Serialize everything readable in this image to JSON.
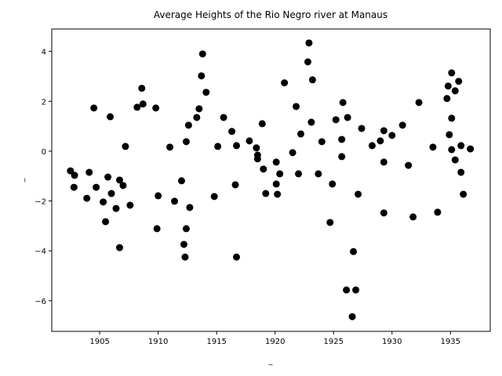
{
  "chart_data": {
    "type": "scatter",
    "title": "Average Heights of the Rio Negro river at Manaus",
    "x_label": "_",
    "y_label": "_",
    "color": "#000000",
    "x": [
      1902.5,
      1902.85,
      1902.8,
      1904.1,
      1903.9,
      1904.5,
      1904.7,
      1905.3,
      1905.5,
      1905.7,
      1905.9,
      1906.0,
      1906.4,
      1906.7,
      1906.7,
      1907.0,
      1907.2,
      1907.6,
      1908.2,
      1908.6,
      1908.7,
      1909.8,
      1909.9,
      1910.0,
      1911.0,
      1911.4,
      1912.0,
      1912.2,
      1912.3,
      1912.4,
      1912.4,
      1912.6,
      1912.7,
      1913.3,
      1913.5,
      1913.7,
      1913.8,
      1914.1,
      1914.8,
      1915.1,
      1915.6,
      1916.3,
      1916.6,
      1916.7,
      1916.7,
      1917.8,
      1918.4,
      1918.5,
      1918.5,
      1918.9,
      1919.0,
      1919.2,
      1920.1,
      1920.1,
      1920.2,
      1920.4,
      1920.8,
      1921.5,
      1921.8,
      1922.0,
      1922.2,
      1922.8,
      1922.9,
      1923.1,
      1923.2,
      1923.7,
      1924.0,
      1924.7,
      1924.9,
      1925.2,
      1925.7,
      1925.7,
      1925.8,
      1926.1,
      1926.2,
      1926.6,
      1926.7,
      1926.9,
      1927.1,
      1927.4,
      1928.3,
      1929.0,
      1929.3,
      1929.3,
      1929.3,
      1930.0,
      1930.9,
      1931.4,
      1931.8,
      1932.3,
      1933.5,
      1933.9,
      1934.8,
      1934.7,
      1934.9,
      1935.1,
      1935.1,
      1935.1,
      1935.4,
      1935.4,
      1935.7,
      1935.9,
      1935.9,
      1936.1,
      1936.7
    ],
    "values": [
      -0.79,
      -0.97,
      -1.45,
      -0.85,
      -1.89,
      1.73,
      -1.45,
      -2.04,
      -2.83,
      -1.04,
      1.38,
      -1.7,
      -2.3,
      -3.87,
      -1.16,
      -1.38,
      0.19,
      -2.17,
      1.76,
      2.52,
      1.89,
      1.73,
      -3.11,
      -1.79,
      0.16,
      -2.01,
      -1.19,
      -3.74,
      -4.25,
      -3.11,
      0.38,
      1.04,
      -2.26,
      1.35,
      1.7,
      3.02,
      3.9,
      2.36,
      -1.82,
      0.19,
      1.35,
      0.79,
      -1.35,
      0.22,
      -4.25,
      0.41,
      0.13,
      -0.31,
      -0.16,
      1.1,
      -0.72,
      -1.7,
      -0.44,
      -1.32,
      -1.73,
      -0.91,
      2.74,
      -0.06,
      1.79,
      -0.91,
      0.69,
      3.58,
      4.34,
      1.16,
      2.86,
      -0.91,
      0.38,
      -2.86,
      -1.32,
      1.26,
      -0.22,
      0.47,
      1.95,
      -5.57,
      1.35,
      -6.64,
      -4.03,
      -5.57,
      -1.73,
      0.91,
      0.22,
      0.41,
      0.82,
      -0.44,
      -2.48,
      0.63,
      1.04,
      -0.57,
      -2.64,
      1.95,
      0.16,
      -2.45,
      2.61,
      2.11,
      0.66,
      3.14,
      1.32,
      0.06,
      2.42,
      -0.35,
      2.8,
      0.22,
      -0.85,
      -1.73,
      0.09
    ],
    "xlim": [
      1900.9,
      1938.4
    ],
    "ylim": [
      -7.23,
      4.9
    ],
    "xticks": [
      1905,
      1910,
      1915,
      1920,
      1925,
      1930,
      1935
    ],
    "yticks": [
      {
        "value": -6,
        "label": "−6"
      },
      {
        "value": -4,
        "label": "−4"
      },
      {
        "value": -2,
        "label": "−2"
      },
      0,
      2,
      4
    ]
  }
}
